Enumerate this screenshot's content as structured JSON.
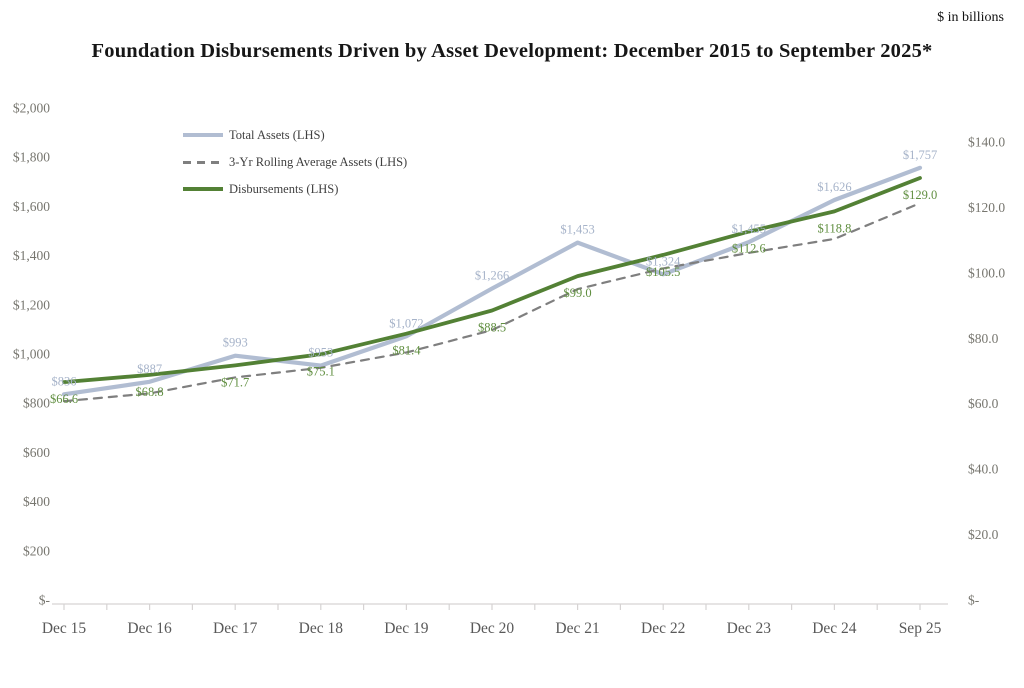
{
  "note": "$ in billions",
  "title": "Foundation Disbursements Driven by Asset Development: December 2015 to September 2025*",
  "chart_data": {
    "type": "line",
    "title": "Foundation Disbursements Driven by Asset Development: December 2015 to September 2025*",
    "units_note": "$ in billions",
    "grid": false,
    "legend_position": "inside-top-left",
    "categories": [
      "Dec 15",
      "Dec 16",
      "Dec 17",
      "Dec 18",
      "Dec 19",
      "Dec 20",
      "Dec 21",
      "Dec 22",
      "Dec 23",
      "Dec 24",
      "Sep 25"
    ],
    "left_axis": {
      "min": 0,
      "max": 2000,
      "step": 200,
      "tick_labels": [
        "$2,000",
        "$1,800",
        "$1,600",
        "$1,400",
        "$1,200",
        "$1,000",
        "$800",
        "$600",
        "$400",
        "$200",
        "$-"
      ]
    },
    "right_axis": {
      "min": 0,
      "max": 140,
      "step": 20,
      "tick_labels": [
        "$140.0",
        "$120.0",
        "$100.0",
        "$80.0",
        "$60.0",
        "$40.0",
        "$20.0",
        "$-"
      ]
    },
    "series": [
      {
        "name": "Total Assets (LHS)",
        "axis": "left",
        "style": "solid",
        "color": "#b1bdd2",
        "label_color": "#a6b3c9",
        "label_position": "above",
        "values": [
          836,
          887,
          993,
          953,
          1072,
          1266,
          1453,
          1324,
          1455,
          1626,
          1757
        ],
        "labels": [
          "$836",
          "$887",
          "$993",
          "$953",
          "$1,072",
          "$1,266",
          "$1,453",
          "$1,324",
          "$1,455",
          "$1,626",
          "$1,757"
        ]
      },
      {
        "name": "3-Yr Rolling Average Assets (LHS)",
        "axis": "left",
        "style": "dashed",
        "color": "#7f7f7f",
        "label_color": null,
        "label_position": null,
        "values": [
          808,
          840,
          905,
          944,
          1006,
          1097,
          1264,
          1348,
          1411,
          1468,
          1613
        ],
        "values_estimated": true,
        "labels": null
      },
      {
        "name": "Disbursements (LHS)",
        "axis": "right",
        "style": "solid",
        "color": "#538135",
        "label_color": "#618f41",
        "label_position": "below",
        "values": [
          66.6,
          68.8,
          71.7,
          75.1,
          81.4,
          88.5,
          99.0,
          105.5,
          112.6,
          118.8,
          129.0
        ],
        "labels": [
          "$66.6",
          "$68.8",
          "$71.7",
          "$75.1",
          "$81.4",
          "$88.5",
          "$99.0",
          "$105.5",
          "$112.6",
          "$118.8",
          "$129.0"
        ]
      }
    ]
  }
}
